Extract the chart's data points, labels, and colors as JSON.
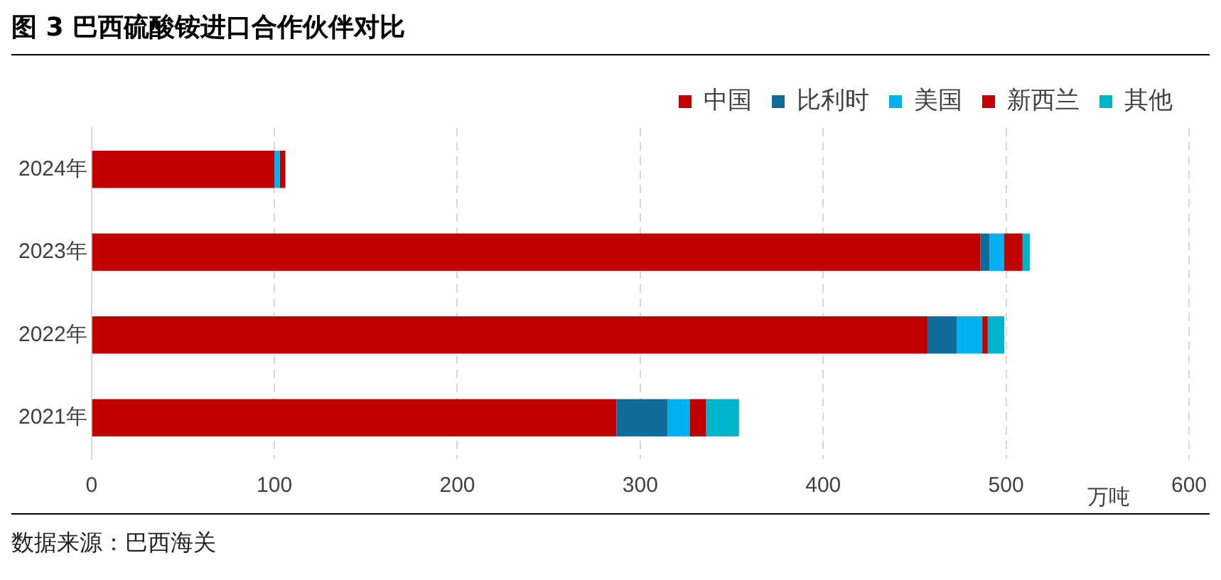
{
  "chart_data": {
    "type": "bar",
    "orientation": "horizontal",
    "stacked": true,
    "title": "图 3 巴西硫酸铵进口合作伙伴对比",
    "xlabel": "万吨",
    "annotations": [
      "数据来源：巴西海关"
    ],
    "categories": [
      "2024年",
      "2023年",
      "2022年",
      "2021年"
    ],
    "series": [
      {
        "name": "中国",
        "color": "#c00000",
        "values": [
          100,
          486,
          457,
          287
        ]
      },
      {
        "name": "比利时",
        "color": "#0e6b9a",
        "values": [
          0,
          5,
          16,
          28
        ]
      },
      {
        "name": "美国",
        "color": "#00b0f0",
        "values": [
          3,
          8,
          14,
          12
        ]
      },
      {
        "name": "新西兰",
        "color": "#c00000",
        "values": [
          3,
          10,
          3,
          9
        ]
      },
      {
        "name": "其他",
        "color": "#00b4cc",
        "values": [
          0,
          4,
          9,
          18
        ]
      }
    ],
    "xlim": [
      0,
      600
    ],
    "xticks": [
      0,
      100,
      200,
      300,
      400,
      500,
      600
    ],
    "grid": "x",
    "legend": "top right"
  }
}
